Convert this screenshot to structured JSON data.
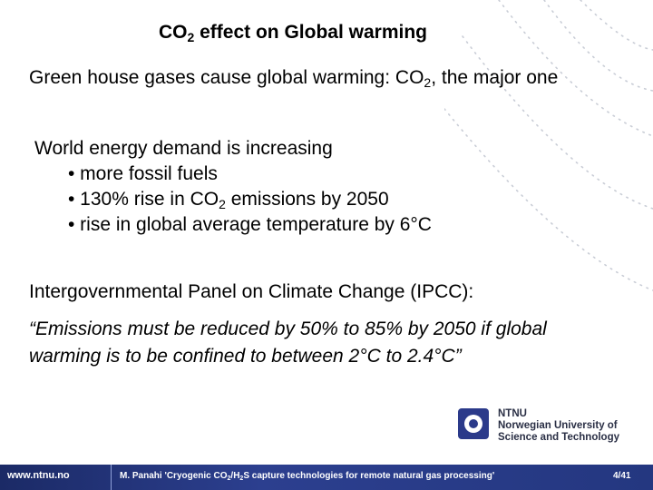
{
  "title": {
    "pre": "CO",
    "sub": "2",
    "post": " effect on Global warming"
  },
  "intro": {
    "pre": "Green house gases cause global warming: CO",
    "sub": "2",
    "post": ", the major one"
  },
  "demand": {
    "heading": "World energy demand is increasing",
    "bullets": [
      {
        "pre": "•  more fossil fuels",
        "sub": "",
        "post": ""
      },
      {
        "pre": "• 130% rise in CO",
        "sub": "2",
        "post": " emissions by 2050"
      },
      {
        "pre": "• rise in global average temperature by 6°C",
        "sub": "",
        "post": ""
      }
    ]
  },
  "ipcc": {
    "heading": "Intergovernmental Panel on Climate Change (IPCC):",
    "quote_line1": "“Emissions must be reduced by 50% to 85% by 2050 if global",
    "quote_line2": "warming is to be confined to between 2°C to 2.4°C”"
  },
  "logo": {
    "line1": "NTNU",
    "line2": "Norwegian University of",
    "line3": "Science and Technology"
  },
  "footer": {
    "url": "www.ntnu.no",
    "pre": "M. Panahi 'Cryogenic CO",
    "sub1": "2",
    "mid": "/H",
    "sub2": "2",
    "post": "S capture technologies for remote natural gas processing'",
    "page": "4/41"
  },
  "colors": {
    "footer_bg": "#2c3f8f",
    "logo_blue": "#2b3a8a"
  }
}
